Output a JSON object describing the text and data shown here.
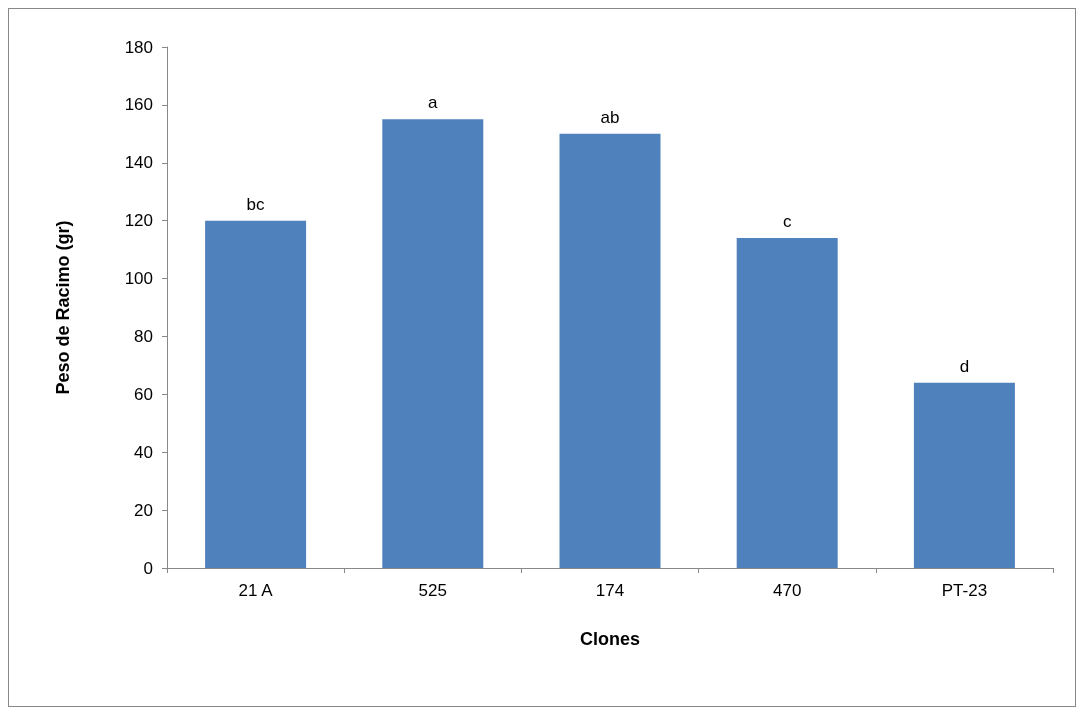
{
  "chart_data": {
    "type": "bar",
    "xlabel": "Clones",
    "ylabel": "Peso de Racimo (gr)",
    "categories": [
      "21 A",
      "525",
      "174",
      "470",
      "PT-23"
    ],
    "values": [
      120,
      155,
      150,
      114,
      64
    ],
    "color": "#4f81bd",
    "ylim": [
      0,
      180
    ],
    "yticks": [
      0,
      20,
      40,
      60,
      80,
      100,
      120,
      140,
      160,
      180
    ],
    "grid": false,
    "annotations": [
      {
        "text": "bc",
        "x": "21 A",
        "y": 120
      },
      {
        "text": "a",
        "x": "525",
        "y": 155
      },
      {
        "text": "ab",
        "x": "174",
        "y": 150
      },
      {
        "text": "c",
        "x": "470",
        "y": 114
      },
      {
        "text": "d",
        "x": "PT-23",
        "y": 64
      }
    ]
  }
}
